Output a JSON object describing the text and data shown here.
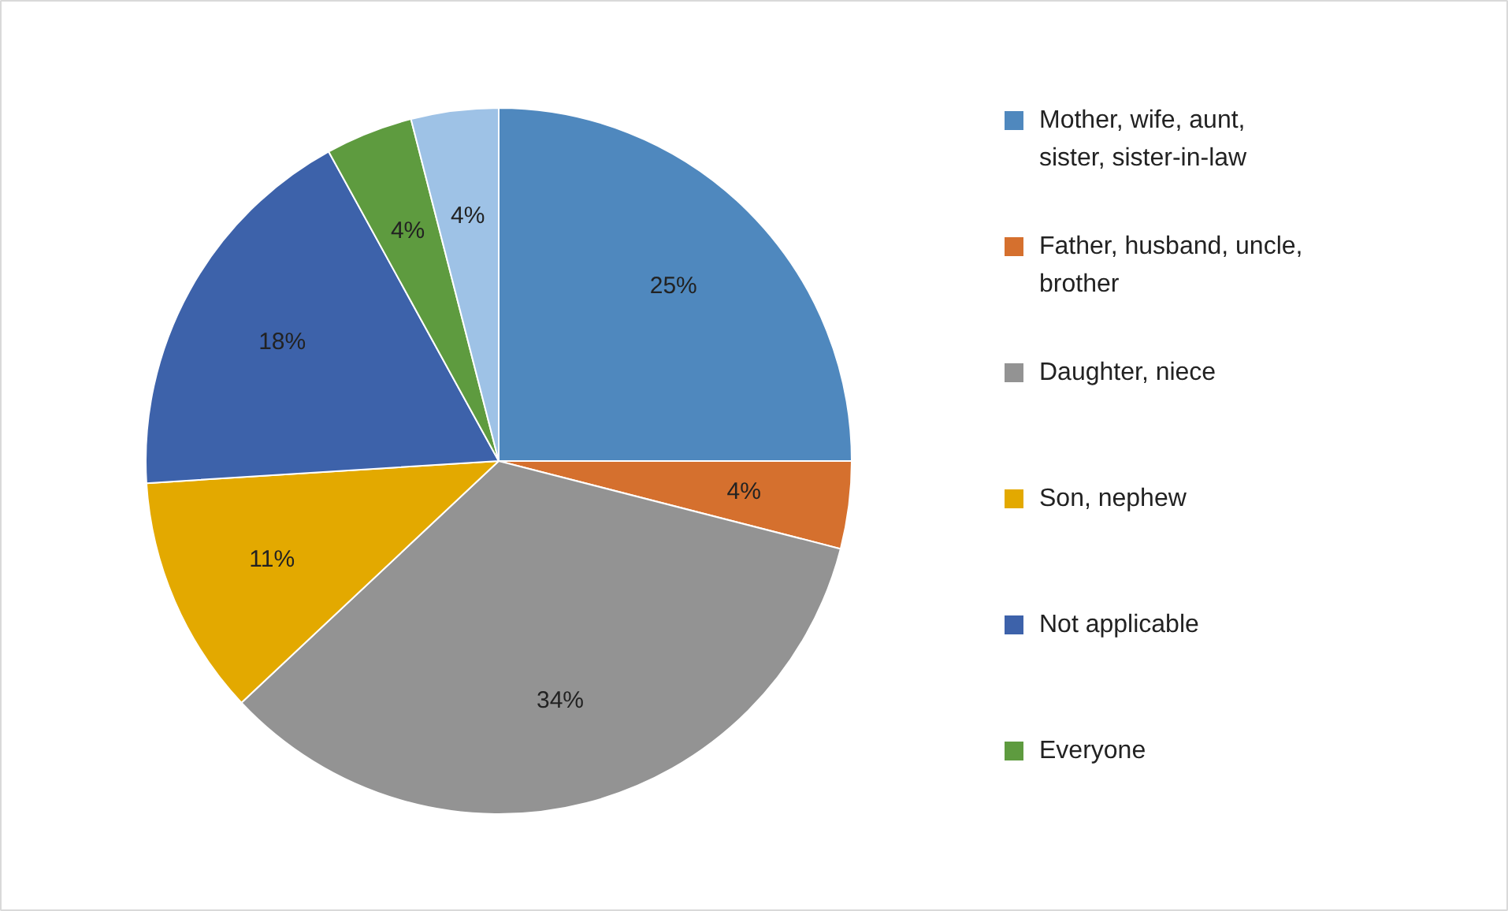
{
  "chart_data": {
    "type": "pie",
    "categories": [
      "Mother, wife, aunt, sister, sister-in-law",
      "Father, husband, uncle, brother",
      "Daughter, niece",
      "Son, nephew",
      "Not applicable",
      "Everyone",
      null
    ],
    "values": [
      25,
      4,
      34,
      11,
      18,
      4,
      4
    ],
    "value_labels": [
      "25%",
      "4%",
      "34%",
      "11%",
      "18%",
      "4%",
      "4%"
    ],
    "colors": [
      "#4f88be",
      "#d5702e",
      "#939393",
      "#e3a900",
      "#3d62aa",
      "#5e9b3f",
      "#9ec2e6"
    ],
    "legend": "right"
  }
}
